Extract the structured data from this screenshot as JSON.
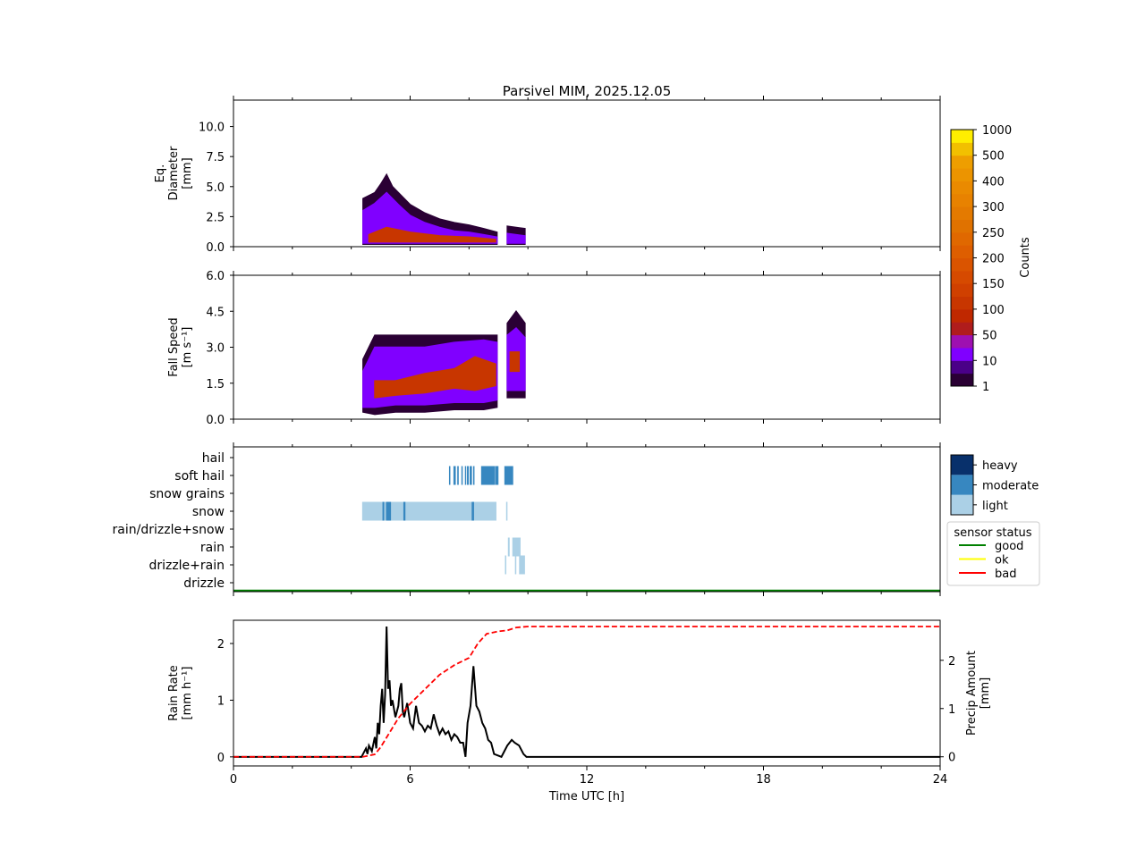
{
  "chart_data": {
    "title": "Parsivel MIM, 2025.12.05",
    "xlabel": "Time UTC [h]",
    "xlim": [
      0,
      24
    ],
    "xticks": [
      "0",
      "6",
      "12",
      "18",
      "24"
    ],
    "panels": [
      {
        "type": "heatmap",
        "ylabel": [
          "Eq.",
          "Diameter",
          "[mm]"
        ],
        "ylim": [
          0,
          12.2
        ],
        "yticks": [
          "0.0",
          "2.5",
          "5.0",
          "7.5",
          "10.0"
        ],
        "ytick_values": [
          0,
          2.5,
          5,
          7.5,
          10
        ],
        "layers": [
          {
            "level": 0,
            "envelope": [
              [
                4.4,
                0.2,
                4.0
              ],
              [
                4.8,
                0.2,
                4.5
              ],
              [
                5.0,
                0.2,
                5.2
              ],
              [
                5.2,
                0.2,
                6.0
              ],
              [
                5.4,
                0.2,
                5.0
              ],
              [
                5.6,
                0.2,
                4.5
              ],
              [
                6.0,
                0.2,
                3.5
              ],
              [
                6.5,
                0.2,
                2.8
              ],
              [
                7.0,
                0.2,
                2.3
              ],
              [
                7.5,
                0.2,
                2.0
              ],
              [
                8.0,
                0.2,
                1.8
              ],
              [
                8.5,
                0.2,
                1.5
              ],
              [
                8.95,
                0.2,
                1.2
              ]
            ]
          },
          {
            "level": 2,
            "envelope": [
              [
                4.4,
                0.3,
                3.0
              ],
              [
                4.8,
                0.3,
                3.6
              ],
              [
                5.2,
                0.3,
                4.5
              ],
              [
                5.6,
                0.3,
                3.5
              ],
              [
                6.0,
                0.3,
                2.6
              ],
              [
                6.5,
                0.3,
                2.0
              ],
              [
                7.0,
                0.3,
                1.6
              ],
              [
                7.5,
                0.3,
                1.3
              ],
              [
                8.0,
                0.3,
                1.2
              ],
              [
                8.5,
                0.3,
                1.0
              ],
              [
                8.95,
                0.3,
                0.8
              ]
            ]
          },
          {
            "level": 4,
            "envelope": [
              [
                4.6,
                0.4,
                1.0
              ],
              [
                5.2,
                0.4,
                1.6
              ],
              [
                6.0,
                0.4,
                1.2
              ],
              [
                7.0,
                0.4,
                0.9
              ],
              [
                8.0,
                0.4,
                0.8
              ],
              [
                8.9,
                0.4,
                0.6
              ]
            ]
          },
          {
            "level": 0,
            "envelope": [
              [
                9.3,
                0.2,
                1.7
              ],
              [
                9.9,
                0.2,
                1.5
              ]
            ]
          },
          {
            "level": 2,
            "envelope": [
              [
                9.3,
                0.3,
                1.1
              ],
              [
                9.9,
                0.3,
                0.9
              ]
            ]
          }
        ]
      },
      {
        "type": "heatmap",
        "ylabel": [
          "Fall Speed",
          "[m s⁻¹]"
        ],
        "ylim": [
          0,
          6.0
        ],
        "yticks": [
          "0.0",
          "1.5",
          "3.0",
          "4.5",
          "6.0"
        ],
        "ytick_values": [
          0,
          1.5,
          3,
          4.5,
          6
        ],
        "layers": [
          {
            "level": 0,
            "envelope": [
              [
                4.4,
                0.3,
                2.5
              ],
              [
                4.8,
                0.2,
                3.5
              ],
              [
                5.5,
                0.3,
                3.5
              ],
              [
                6.5,
                0.3,
                3.5
              ],
              [
                7.5,
                0.4,
                3.5
              ],
              [
                8.5,
                0.4,
                3.5
              ],
              [
                8.95,
                0.5,
                3.5
              ]
            ]
          },
          {
            "level": 2,
            "envelope": [
              [
                4.4,
                0.5,
                2.0
              ],
              [
                4.8,
                0.5,
                3.0
              ],
              [
                5.5,
                0.6,
                3.0
              ],
              [
                6.5,
                0.6,
                3.0
              ],
              [
                7.5,
                0.7,
                3.2
              ],
              [
                8.5,
                0.7,
                3.3
              ],
              [
                8.95,
                0.8,
                3.2
              ]
            ]
          },
          {
            "level": 4,
            "envelope": [
              [
                4.8,
                0.9,
                1.6
              ],
              [
                5.5,
                1.0,
                1.6
              ],
              [
                6.5,
                1.1,
                1.9
              ],
              [
                7.5,
                1.3,
                2.1
              ],
              [
                8.2,
                1.2,
                2.6
              ],
              [
                8.9,
                1.4,
                2.3
              ]
            ]
          },
          {
            "level": 0,
            "envelope": [
              [
                9.3,
                0.9,
                4.0
              ],
              [
                9.6,
                0.9,
                4.5
              ],
              [
                9.9,
                0.9,
                4.0
              ]
            ]
          },
          {
            "level": 2,
            "envelope": [
              [
                9.3,
                1.2,
                3.5
              ],
              [
                9.6,
                1.2,
                3.8
              ],
              [
                9.9,
                1.2,
                3.4
              ]
            ]
          },
          {
            "level": 4,
            "envelope": [
              [
                9.4,
                2.0,
                2.8
              ],
              [
                9.7,
                2.0,
                2.8
              ]
            ]
          }
        ]
      },
      {
        "type": "categorical",
        "categories": [
          "drizzle",
          "drizzle+rain",
          "rain",
          "rain/drizzle+snow",
          "snow",
          "snow grains",
          "soft hail",
          "hail"
        ],
        "intensity_labels": [
          "light",
          "moderate",
          "heavy"
        ],
        "intensity_colors": [
          "#abd0e6",
          "#3787c0",
          "#08306b"
        ],
        "segments": [
          {
            "cat": 4,
            "int": 0,
            "t": [
              4.37,
              8.93
            ]
          },
          {
            "cat": 4,
            "int": 1,
            "t": [
              5.06,
              5.12
            ]
          },
          {
            "cat": 4,
            "int": 1,
            "t": [
              5.18,
              5.35
            ]
          },
          {
            "cat": 4,
            "int": 1,
            "t": [
              5.77,
              5.84
            ]
          },
          {
            "cat": 4,
            "int": 1,
            "t": [
              8.09,
              8.17
            ]
          },
          {
            "cat": 4,
            "int": 0,
            "t": [
              9.26,
              9.29
            ]
          },
          {
            "cat": 6,
            "int": 1,
            "t": [
              7.32,
              7.35
            ]
          },
          {
            "cat": 6,
            "int": 1,
            "t": [
              7.47,
              7.55
            ]
          },
          {
            "cat": 6,
            "int": 1,
            "t": [
              7.6,
              7.65
            ]
          },
          {
            "cat": 6,
            "int": 1,
            "t": [
              7.74,
              7.78
            ]
          },
          {
            "cat": 6,
            "int": 1,
            "t": [
              7.86,
              7.89
            ]
          },
          {
            "cat": 6,
            "int": 1,
            "t": [
              7.93,
              7.99
            ]
          },
          {
            "cat": 6,
            "int": 1,
            "t": [
              8.02,
              8.1
            ]
          },
          {
            "cat": 6,
            "int": 1,
            "t": [
              8.14,
              8.16
            ]
          },
          {
            "cat": 6,
            "int": 1,
            "t": [
              8.41,
              8.87
            ]
          },
          {
            "cat": 6,
            "int": 1,
            "t": [
              8.88,
              9.0
            ]
          },
          {
            "cat": 6,
            "int": 1,
            "t": [
              9.2,
              9.5
            ]
          },
          {
            "cat": 2,
            "int": 0,
            "t": [
              9.32,
              9.38
            ]
          },
          {
            "cat": 2,
            "int": 0,
            "t": [
              9.47,
              9.75
            ]
          },
          {
            "cat": 1,
            "int": 0,
            "t": [
              9.22,
              9.25
            ]
          },
          {
            "cat": 1,
            "int": 0,
            "t": [
              9.56,
              9.6
            ]
          },
          {
            "cat": 1,
            "int": 0,
            "t": [
              9.7,
              9.9
            ]
          }
        ],
        "sensor_status": {
          "title": "sensor status",
          "labels": [
            "good",
            "ok",
            "bad"
          ],
          "colors": [
            "#008000",
            "#ffff00",
            "#ff0000"
          ],
          "value": "good"
        }
      },
      {
        "type": "line",
        "ylabel": [
          "Rain Rate",
          "[mm h⁻¹]"
        ],
        "ylim": [
          -0.16,
          2.41
        ],
        "yticks": [
          "0",
          "1",
          "2"
        ],
        "ytick_values": [
          0,
          1,
          2
        ],
        "y2label": [
          "Precip Amount",
          "[mm]"
        ],
        "y2lim": [
          -0.19,
          2.83
        ],
        "y2ticks": [
          "0",
          "1",
          "2"
        ],
        "y2tick_values": [
          0,
          1,
          2
        ],
        "series": [
          {
            "name": "rain rate",
            "axis": "left",
            "color": "#000000",
            "style": "solid",
            "points": [
              [
                0,
                0
              ],
              [
                4.35,
                0
              ],
              [
                4.4,
                0.05
              ],
              [
                4.5,
                0.15
              ],
              [
                4.55,
                0.05
              ],
              [
                4.6,
                0.2
              ],
              [
                4.7,
                0.1
              ],
              [
                4.8,
                0.35
              ],
              [
                4.85,
                0.15
              ],
              [
                4.9,
                0.6
              ],
              [
                4.95,
                0.4
              ],
              [
                5.0,
                0.9
              ],
              [
                5.05,
                1.2
              ],
              [
                5.1,
                0.6
              ],
              [
                5.15,
                1.1
              ],
              [
                5.2,
                2.3
              ],
              [
                5.25,
                1.2
              ],
              [
                5.3,
                1.35
              ],
              [
                5.35,
                0.9
              ],
              [
                5.4,
                1.0
              ],
              [
                5.5,
                0.7
              ],
              [
                5.6,
                0.9
              ],
              [
                5.65,
                1.2
              ],
              [
                5.7,
                1.3
              ],
              [
                5.75,
                0.8
              ],
              [
                5.8,
                0.7
              ],
              [
                5.9,
                0.95
              ],
              [
                6.0,
                0.6
              ],
              [
                6.1,
                0.5
              ],
              [
                6.2,
                0.9
              ],
              [
                6.3,
                0.6
              ],
              [
                6.4,
                0.55
              ],
              [
                6.5,
                0.45
              ],
              [
                6.6,
                0.55
              ],
              [
                6.7,
                0.5
              ],
              [
                6.8,
                0.75
              ],
              [
                6.9,
                0.55
              ],
              [
                7.0,
                0.4
              ],
              [
                7.1,
                0.5
              ],
              [
                7.2,
                0.4
              ],
              [
                7.3,
                0.45
              ],
              [
                7.4,
                0.3
              ],
              [
                7.5,
                0.4
              ],
              [
                7.6,
                0.35
              ],
              [
                7.7,
                0.25
              ],
              [
                7.8,
                0.25
              ],
              [
                7.88,
                0.0
              ],
              [
                7.95,
                0.6
              ],
              [
                8.05,
                0.9
              ],
              [
                8.15,
                1.6
              ],
              [
                8.25,
                0.9
              ],
              [
                8.35,
                0.8
              ],
              [
                8.45,
                0.6
              ],
              [
                8.55,
                0.5
              ],
              [
                8.65,
                0.3
              ],
              [
                8.75,
                0.25
              ],
              [
                8.85,
                0.05
              ],
              [
                9.1,
                0.0
              ],
              [
                9.2,
                0.1
              ],
              [
                9.3,
                0.2
              ],
              [
                9.45,
                0.3
              ],
              [
                9.55,
                0.25
              ],
              [
                9.7,
                0.2
              ],
              [
                9.85,
                0.05
              ],
              [
                9.95,
                0
              ],
              [
                24,
                0
              ]
            ]
          },
          {
            "name": "precip amount",
            "axis": "right",
            "color": "#ff0000",
            "style": "dashed",
            "points": [
              [
                0,
                0
              ],
              [
                4.4,
                0
              ],
              [
                4.8,
                0.05
              ],
              [
                5.0,
                0.2
              ],
              [
                5.2,
                0.4
              ],
              [
                5.6,
                0.8
              ],
              [
                6.0,
                1.1
              ],
              [
                6.5,
                1.4
              ],
              [
                7.0,
                1.7
              ],
              [
                7.5,
                1.9
              ],
              [
                8.0,
                2.05
              ],
              [
                8.3,
                2.35
              ],
              [
                8.6,
                2.55
              ],
              [
                9.0,
                2.6
              ],
              [
                9.3,
                2.62
              ],
              [
                9.6,
                2.68
              ],
              [
                10,
                2.7
              ],
              [
                24,
                2.7
              ]
            ]
          }
        ]
      }
    ],
    "colorbar": {
      "label": "Counts",
      "ticks": [
        "1",
        "10",
        "50",
        "100",
        "150",
        "200",
        "250",
        "300",
        "400",
        "500",
        "1000"
      ],
      "colors": [
        "#2a0034",
        "#4a0088",
        "#8000ff",
        "#9e10b0",
        "#b01c1c",
        "#c02800",
        "#c83600",
        "#d04000",
        "#d64a00",
        "#da5400",
        "#de5e00",
        "#e06800",
        "#e07200",
        "#e47a00",
        "#e88200",
        "#ea8a00",
        "#ec9400",
        "#ee9e00",
        "#f2c000",
        "#ffee00"
      ]
    }
  }
}
